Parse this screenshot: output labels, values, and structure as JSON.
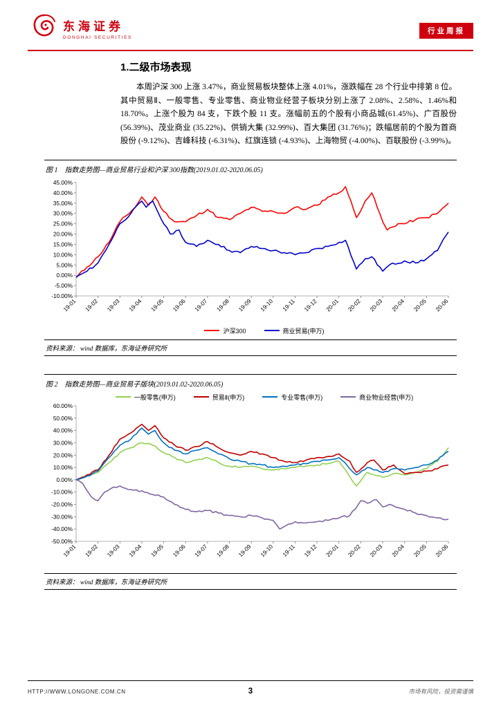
{
  "colors": {
    "brand_red": "#cf000e",
    "hs300_red": "#ff0000",
    "trade_blue": "#0000cc",
    "retail_green": "#92d050",
    "trade2_darkred": "#c00000",
    "special_retail_blue": "#0070c0",
    "property_purple": "#8064a2"
  },
  "header": {
    "logo_cn": "东海证券",
    "logo_en": "DONGHAI SECURITIES",
    "badge": "行业周报"
  },
  "section": {
    "title": "1.二级市场表现",
    "paragraph": "本周沪深 300 上涨 3.47%，商业贸易板块整体上涨 4.01%，涨跌幅在 28 个行业中排第 8 位。其中贸易Ⅱ、一般零售、专业零售、商业物业经营子板块分别上涨了 2.08%、2.58%、1.46%和 18.70%。上涨个股为 84 支，下跌个股 11 支。涨幅前五的个股有小商品城(61.45%)、广百股份 (56.39%)、茂业商业 (35.22%)、供销大集 (32.99%)、百大集团 (31.76%)；跌幅居前的个股为首商股份 (-9.12%)、吉峰科技 (-6.31%)、红旗连锁 (-4.93%)、上海物贸 (-4.00%)、百联股份 (-3.99%)。"
  },
  "figure1": {
    "caption": "图 1　指数走势图—商业贸易行业和沪深 300指数(2019.01.02-2020.06.05)",
    "source": "资料来源：  wind 数据库，东海证券研究所"
  },
  "figure2": {
    "caption": "图 2　指数走势图—商业贸易子版块(2019.01.02-2020.06.05)",
    "source": "资料来源：  wind 数据库，东海证券研究所"
  },
  "footer": {
    "url": "HTTP://WWW.LONGONE.COM.CN",
    "page": "3",
    "disclaimer": "市场有风险，投资需谨慎"
  },
  "chart_data": [
    {
      "type": "line",
      "title": "指数走势图—商业贸易行业和沪深300指数 (2019.01.02-2020.06.05)",
      "xlabel": "",
      "ylabel": "",
      "x_categories": [
        "19-01",
        "19-02",
        "19-03",
        "19-04",
        "19-05",
        "19-06",
        "19-07",
        "19-08",
        "19-09",
        "19-10",
        "19-11",
        "19-12",
        "20-01",
        "20-02",
        "20-03",
        "20-04",
        "20-05",
        "20-06"
      ],
      "ylim": [
        -10,
        45
      ],
      "ystep": 5,
      "grid": false,
      "legend_position": "bottom",
      "series": [
        {
          "name": "沪深300",
          "color": "#ff0000",
          "points": [
            [
              0,
              -1
            ],
            [
              0.5,
              4
            ],
            [
              1,
              9
            ],
            [
              1.5,
              16
            ],
            [
              2,
              26
            ],
            [
              2.7,
              33
            ],
            [
              3,
              38
            ],
            [
              3.3,
              34
            ],
            [
              3.6,
              38
            ],
            [
              4,
              31
            ],
            [
              4.5,
              26
            ],
            [
              5,
              26
            ],
            [
              5.5,
              29
            ],
            [
              6,
              32
            ],
            [
              6.5,
              28
            ],
            [
              7,
              27
            ],
            [
              7.5,
              30
            ],
            [
              8,
              33
            ],
            [
              8.5,
              31
            ],
            [
              9,
              31
            ],
            [
              9.5,
              30
            ],
            [
              10,
              33
            ],
            [
              10.5,
              32
            ],
            [
              11,
              34
            ],
            [
              11.5,
              38
            ],
            [
              12,
              40
            ],
            [
              12.3,
              43
            ],
            [
              12.8,
              28
            ],
            [
              13.2,
              36
            ],
            [
              13.5,
              40
            ],
            [
              14,
              26
            ],
            [
              14.2,
              22
            ],
            [
              14.7,
              25
            ],
            [
              15,
              25
            ],
            [
              15.5,
              27
            ],
            [
              16,
              28
            ],
            [
              16.5,
              30
            ],
            [
              17,
              35
            ]
          ]
        },
        {
          "name": "商业贸易(申万)",
          "color": "#0000cc",
          "points": [
            [
              0,
              -1
            ],
            [
              0.5,
              2
            ],
            [
              1,
              6
            ],
            [
              1.5,
              15
            ],
            [
              2,
              25
            ],
            [
              2.5,
              30
            ],
            [
              3,
              36
            ],
            [
              3.2,
              33
            ],
            [
              3.5,
              36
            ],
            [
              4,
              25
            ],
            [
              4.3,
              20
            ],
            [
              4.7,
              22
            ],
            [
              5,
              16
            ],
            [
              5.5,
              14
            ],
            [
              6,
              17
            ],
            [
              6.5,
              15
            ],
            [
              7,
              12
            ],
            [
              7.5,
              11
            ],
            [
              8,
              14
            ],
            [
              8.5,
              13
            ],
            [
              9,
              12
            ],
            [
              9.5,
              11
            ],
            [
              10,
              10
            ],
            [
              10.5,
              11
            ],
            [
              11,
              13
            ],
            [
              11.5,
              14
            ],
            [
              12,
              16
            ],
            [
              12.3,
              17
            ],
            [
              12.8,
              3
            ],
            [
              13.2,
              8
            ],
            [
              13.5,
              9
            ],
            [
              14,
              2
            ],
            [
              14.3,
              5
            ],
            [
              15,
              7
            ],
            [
              15.5,
              6
            ],
            [
              16,
              8
            ],
            [
              16.5,
              12
            ],
            [
              17,
              21
            ]
          ]
        }
      ]
    },
    {
      "type": "line",
      "title": "指数走势图—商业贸易子版块 (2019.01.02-2020.06.05)",
      "xlabel": "",
      "ylabel": "",
      "x_categories": [
        "19-01",
        "19-02",
        "19-03",
        "19-04",
        "19-05",
        "19-06",
        "19-07",
        "19-08",
        "19-09",
        "19-10",
        "19-11",
        "19-12",
        "20-01",
        "20-02",
        "20-03",
        "20-04",
        "20-05",
        "20-06"
      ],
      "ylim": [
        -50,
        60
      ],
      "ystep": 10,
      "grid": false,
      "legend_position": "top",
      "series": [
        {
          "name": "一般零售(申万)",
          "color": "#92d050",
          "points": [
            [
              0,
              0
            ],
            [
              0.5,
              3
            ],
            [
              1,
              6
            ],
            [
              1.5,
              14
            ],
            [
              2,
              22
            ],
            [
              2.5,
              26
            ],
            [
              3,
              30
            ],
            [
              3.5,
              28
            ],
            [
              4,
              22
            ],
            [
              4.5,
              18
            ],
            [
              5,
              14
            ],
            [
              5.5,
              16
            ],
            [
              6,
              18
            ],
            [
              6.5,
              14
            ],
            [
              7,
              11
            ],
            [
              7.5,
              10
            ],
            [
              8,
              11
            ],
            [
              8.5,
              9
            ],
            [
              9,
              8
            ],
            [
              9.5,
              9
            ],
            [
              10,
              10
            ],
            [
              10.5,
              11
            ],
            [
              11,
              12
            ],
            [
              11.5,
              13
            ],
            [
              12,
              15
            ],
            [
              12.8,
              -5
            ],
            [
              13.3,
              6
            ],
            [
              14,
              2
            ],
            [
              14.5,
              5
            ],
            [
              15,
              4
            ],
            [
              15.5,
              6
            ],
            [
              16,
              9
            ],
            [
              16.5,
              15
            ],
            [
              17,
              26
            ]
          ]
        },
        {
          "name": "贸易Ⅱ(申万)",
          "color": "#c00000",
          "points": [
            [
              0,
              0
            ],
            [
              0.5,
              4
            ],
            [
              1,
              8
            ],
            [
              1.5,
              20
            ],
            [
              2,
              33
            ],
            [
              2.5,
              38
            ],
            [
              3,
              45
            ],
            [
              3.3,
              40
            ],
            [
              3.6,
              44
            ],
            [
              4,
              34
            ],
            [
              4.5,
              28
            ],
            [
              5,
              24
            ],
            [
              5.5,
              27
            ],
            [
              6,
              31
            ],
            [
              6.5,
              26
            ],
            [
              7,
              22
            ],
            [
              7.5,
              20
            ],
            [
              8,
              23
            ],
            [
              8.5,
              21
            ],
            [
              9,
              18
            ],
            [
              9.5,
              15
            ],
            [
              10,
              14
            ],
            [
              10.5,
              16
            ],
            [
              11,
              18
            ],
            [
              11.5,
              19
            ],
            [
              12,
              21
            ],
            [
              12.5,
              15
            ],
            [
              12.8,
              6
            ],
            [
              13.3,
              14
            ],
            [
              13.6,
              16
            ],
            [
              14,
              8
            ],
            [
              14.5,
              12
            ],
            [
              15,
              5
            ],
            [
              15.5,
              6
            ],
            [
              16,
              7
            ],
            [
              16.5,
              9
            ],
            [
              17,
              12
            ]
          ]
        },
        {
          "name": "专业零售(申万)",
          "color": "#0070c0",
          "points": [
            [
              0,
              0
            ],
            [
              0.5,
              3
            ],
            [
              1,
              7
            ],
            [
              1.5,
              18
            ],
            [
              2,
              28
            ],
            [
              2.5,
              33
            ],
            [
              3,
              42
            ],
            [
              3.3,
              37
            ],
            [
              3.6,
              40
            ],
            [
              4,
              30
            ],
            [
              4.5,
              24
            ],
            [
              5,
              21
            ],
            [
              5.5,
              24
            ],
            [
              6,
              26
            ],
            [
              6.5,
              21
            ],
            [
              7,
              17
            ],
            [
              7.5,
              15
            ],
            [
              8,
              13
            ],
            [
              8.5,
              12
            ],
            [
              9,
              10
            ],
            [
              9.5,
              11
            ],
            [
              10,
              12
            ],
            [
              10.5,
              13
            ],
            [
              11,
              15
            ],
            [
              11.5,
              16
            ],
            [
              12,
              18
            ],
            [
              12.8,
              4
            ],
            [
              13.3,
              10
            ],
            [
              14,
              6
            ],
            [
              14.5,
              9
            ],
            [
              15,
              8
            ],
            [
              15.5,
              10
            ],
            [
              16,
              12
            ],
            [
              16.5,
              16
            ],
            [
              17,
              23
            ]
          ]
        },
        {
          "name": "商业物业经营(申万)",
          "color": "#8064a2",
          "points": [
            [
              0,
              0
            ],
            [
              0.3,
              -3
            ],
            [
              0.7,
              -14
            ],
            [
              1,
              -17
            ],
            [
              1.3,
              -10
            ],
            [
              1.7,
              -6
            ],
            [
              2,
              -5
            ],
            [
              2.5,
              -8
            ],
            [
              3,
              -9
            ],
            [
              3.5,
              -12
            ],
            [
              4,
              -14
            ],
            [
              4.5,
              -20
            ],
            [
              5,
              -24
            ],
            [
              5.5,
              -26
            ],
            [
              6,
              -25
            ],
            [
              6.5,
              -27
            ],
            [
              7,
              -29
            ],
            [
              7.5,
              -30
            ],
            [
              8,
              -29
            ],
            [
              8.5,
              -31
            ],
            [
              9,
              -33
            ],
            [
              9.3,
              -40
            ],
            [
              9.7,
              -36
            ],
            [
              10,
              -34
            ],
            [
              10.5,
              -35
            ],
            [
              11,
              -34
            ],
            [
              11.5,
              -33
            ],
            [
              12,
              -31
            ],
            [
              12.5,
              -29
            ],
            [
              13,
              -17
            ],
            [
              13.3,
              -19
            ],
            [
              13.7,
              -16
            ],
            [
              14,
              -22
            ],
            [
              14.3,
              -20
            ],
            [
              15,
              -24
            ],
            [
              15.5,
              -27
            ],
            [
              16,
              -29
            ],
            [
              16.5,
              -31
            ],
            [
              17,
              -32
            ]
          ]
        }
      ]
    }
  ]
}
